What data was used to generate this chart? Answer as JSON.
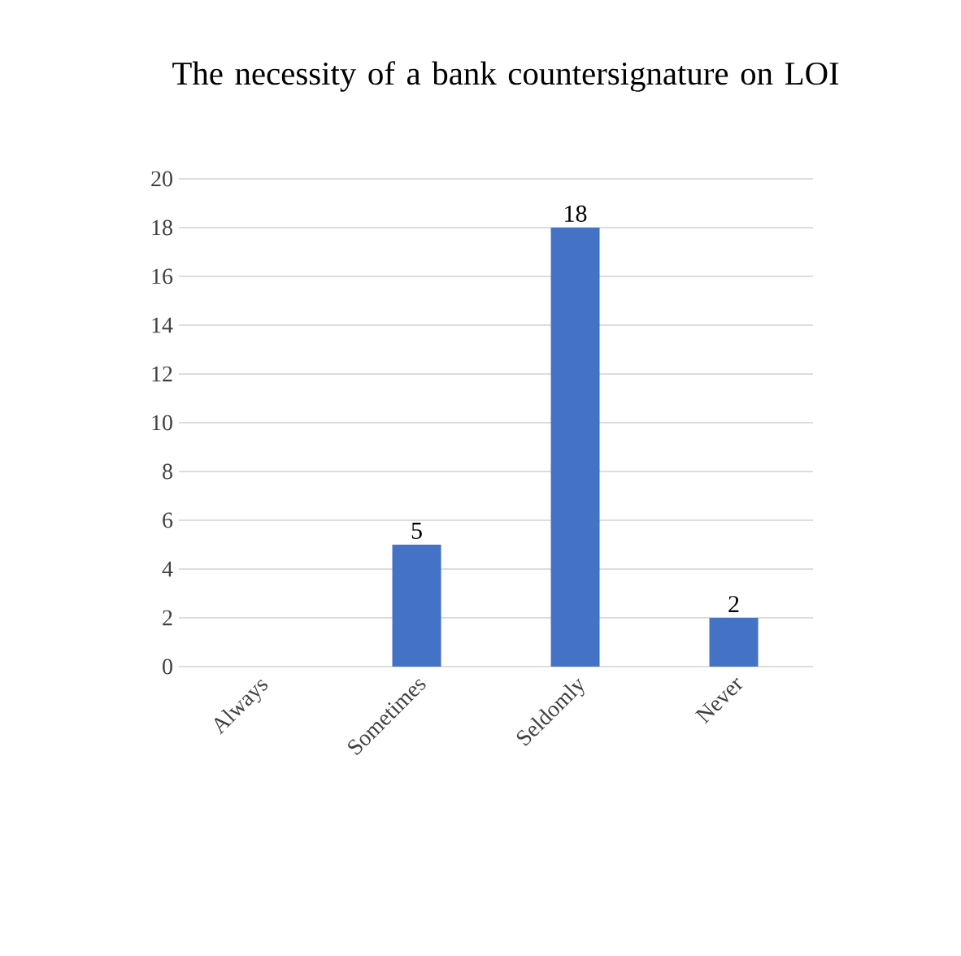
{
  "chart_data": {
    "type": "bar",
    "title": "The necessity of a bank countersignature on LOI",
    "categories": [
      "Always",
      "Sometimes",
      "Seldomly",
      "Never"
    ],
    "values": [
      0,
      5,
      18,
      2
    ],
    "value_labels": [
      null,
      "5",
      "18",
      "2"
    ],
    "color": "#4472c4",
    "ylim": [
      0,
      20
    ],
    "yticks": [
      0,
      2,
      4,
      6,
      8,
      10,
      12,
      14,
      16,
      18,
      20
    ],
    "grid": "y"
  }
}
